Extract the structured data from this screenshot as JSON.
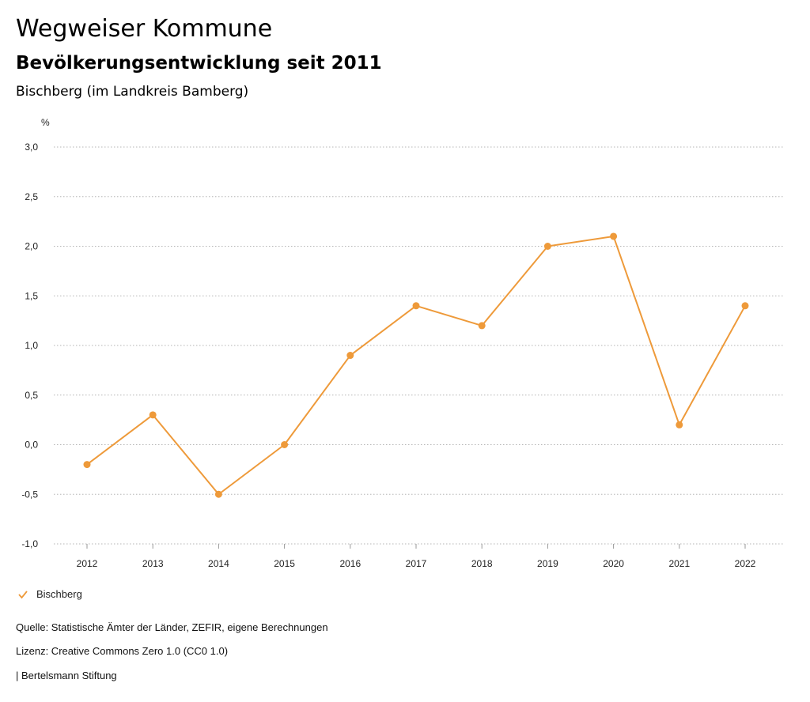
{
  "header": {
    "title": "Wegweiser Kommune",
    "subtitle": "Bevölkerungsentwicklung seit 2011",
    "region": "Bischberg (im Landkreis Bamberg)"
  },
  "chart_data": {
    "type": "line",
    "title": "Bevölkerungsentwicklung seit 2011",
    "ylabel": "%",
    "xlabel": "",
    "categories": [
      "2012",
      "2013",
      "2014",
      "2015",
      "2016",
      "2017",
      "2018",
      "2019",
      "2020",
      "2021",
      "2022"
    ],
    "series": [
      {
        "name": "Bischberg",
        "color": "#EE9A3A",
        "values": [
          -0.2,
          0.3,
          -0.5,
          0.0,
          0.9,
          1.4,
          1.2,
          2.0,
          2.1,
          0.2,
          1.4
        ]
      }
    ],
    "ylim": [
      -1.0,
      3.0
    ],
    "yticks": [
      3.0,
      2.5,
      2.0,
      1.5,
      1.0,
      0.5,
      0.0,
      -0.5,
      -1.0
    ],
    "ytick_labels": [
      "3,0",
      "2,5",
      "2,0",
      "1,5",
      "1,0",
      "0,5",
      "0,0",
      "-0,5",
      "-1,0"
    ],
    "grid": true,
    "legend": "bottom-left"
  },
  "legend": {
    "label": "Bischberg",
    "icon": "check-icon"
  },
  "footer": {
    "source": "Quelle: Statistische Ämter der Länder, ZEFIR, eigene Berechnungen",
    "license": "Lizenz: Creative Commons Zero 1.0 (CC0 1.0)",
    "publisher": "| Bertelsmann Stiftung"
  }
}
